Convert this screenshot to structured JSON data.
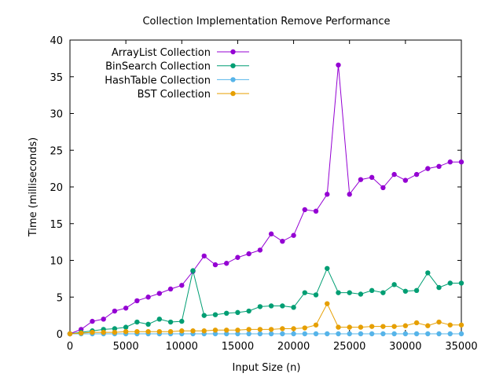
{
  "chart_data": {
    "type": "line",
    "title": "Collection Implementation Remove Performance",
    "xlabel": "Input Size (n)",
    "ylabel": "Time (milliseconds)",
    "xlim": [
      0,
      35000
    ],
    "ylim": [
      0,
      40
    ],
    "xticks": [
      0,
      5000,
      10000,
      15000,
      20000,
      25000,
      30000,
      35000
    ],
    "yticks": [
      0,
      5,
      10,
      15,
      20,
      25,
      30,
      35,
      40
    ],
    "grid": false,
    "legend_position": "top-left",
    "x": [
      0,
      1000,
      2000,
      3000,
      4000,
      5000,
      6000,
      7000,
      8000,
      9000,
      10000,
      11000,
      12000,
      13000,
      14000,
      15000,
      16000,
      17000,
      18000,
      19000,
      20000,
      21000,
      22000,
      23000,
      24000,
      25000,
      26000,
      27000,
      28000,
      29000,
      30000,
      31000,
      32000,
      33000,
      34000,
      35000
    ],
    "series": [
      {
        "name": "ArrayList Collection",
        "color": "#9400d3",
        "values": [
          0,
          0.6,
          1.7,
          2.0,
          3.1,
          3.5,
          4.5,
          5.0,
          5.5,
          6.1,
          6.6,
          8.5,
          10.6,
          9.4,
          9.6,
          10.4,
          10.9,
          11.4,
          13.6,
          12.6,
          13.4,
          16.9,
          16.7,
          19.0,
          36.6,
          19.0,
          21.0,
          21.3,
          19.9,
          21.7,
          20.9,
          21.7,
          22.5,
          22.8,
          23.4,
          23.4
        ]
      },
      {
        "name": "BinSearch Collection",
        "color": "#009e73",
        "values": [
          0,
          0.2,
          0.4,
          0.6,
          0.7,
          0.9,
          1.6,
          1.3,
          2.0,
          1.6,
          1.7,
          8.6,
          2.5,
          2.6,
          2.8,
          2.9,
          3.1,
          3.7,
          3.8,
          3.8,
          3.6,
          5.6,
          5.3,
          8.9,
          5.6,
          5.6,
          5.4,
          5.9,
          5.6,
          6.7,
          5.8,
          5.9,
          8.3,
          6.3,
          6.9,
          6.9
        ]
      },
      {
        "name": "HashTable Collection",
        "color": "#56b4e9",
        "values": [
          0,
          0,
          0,
          0,
          0,
          0,
          0,
          0,
          0,
          0,
          0,
          0,
          0,
          0,
          0,
          0,
          0,
          0,
          0,
          0,
          0,
          0,
          0,
          0,
          0,
          0,
          0,
          0,
          0,
          0,
          0,
          0,
          0,
          0,
          0,
          0
        ]
      },
      {
        "name": "BST Collection",
        "color": "#e69f00",
        "values": [
          0,
          0.1,
          0.2,
          0.2,
          0.2,
          0.3,
          0.3,
          0.3,
          0.3,
          0.3,
          0.4,
          0.4,
          0.4,
          0.5,
          0.5,
          0.5,
          0.6,
          0.6,
          0.6,
          0.7,
          0.7,
          0.8,
          1.2,
          4.1,
          0.9,
          0.9,
          0.9,
          1.0,
          1.0,
          1.0,
          1.1,
          1.5,
          1.1,
          1.6,
          1.2,
          1.2
        ]
      }
    ]
  }
}
